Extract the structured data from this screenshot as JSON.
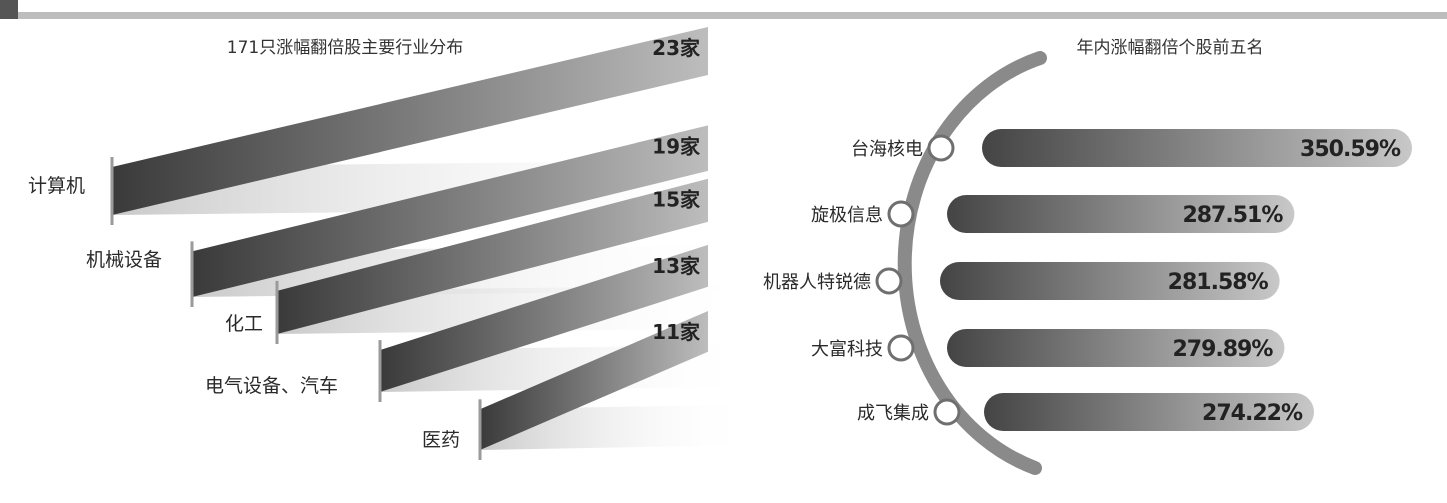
{
  "colors": {
    "bar_dark": "#3e3e3e",
    "bar_light": "#d8d8d8",
    "arc": "#8a8a8a",
    "rule": "#bdbdbd"
  },
  "chart_data": [
    {
      "type": "bar",
      "title": "171只涨幅翻倍股主要行业分布",
      "categories": [
        "计算机",
        "机械设备",
        "化工",
        "电气设备、汽车",
        "医药"
      ],
      "values": [
        23,
        19,
        15,
        13,
        11
      ],
      "value_labels": [
        "23家",
        "19家",
        "15家",
        "13家",
        "11家"
      ],
      "unit": "家"
    },
    {
      "type": "bar",
      "title": "年内涨幅翻倍个股前五名",
      "categories": [
        "台海核电",
        "旋极信息",
        "机器人特锐德",
        "大富科技",
        "成飞集成"
      ],
      "values": [
        350.59,
        287.51,
        281.58,
        279.89,
        274.22
      ],
      "value_labels": [
        "350.59%",
        "287.51%",
        "281.58%",
        "279.89%",
        "274.22%"
      ],
      "unit": "%"
    }
  ]
}
